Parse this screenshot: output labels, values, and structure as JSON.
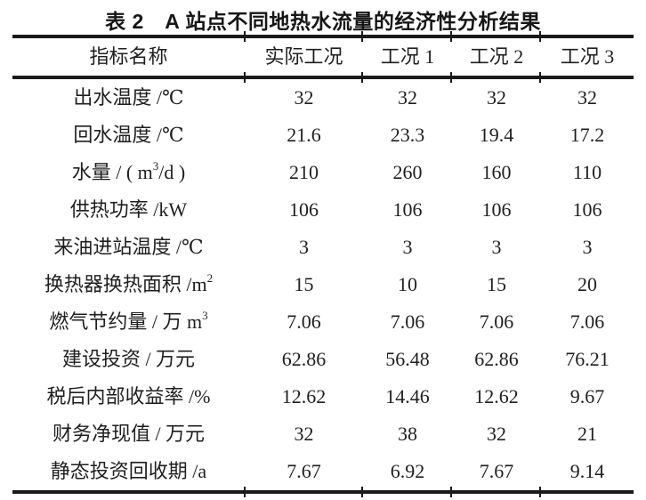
{
  "page": {
    "background": "#ffffff",
    "text_color": "#1f1f1f",
    "rule_color": "#1a1a1a"
  },
  "table": {
    "title": "表 2　A 站点不同地热水流量的经济性分析结果",
    "columns": [
      "指标名称",
      "实际工况",
      "工况 1",
      "工况 2",
      "工况 3"
    ],
    "rows": [
      {
        "label_pre": "出水温度 /℃",
        "label_sup": "",
        "label_post": "",
        "values": [
          "32",
          "32",
          "32",
          "32"
        ]
      },
      {
        "label_pre": "回水温度 /℃",
        "label_sup": "",
        "label_post": "",
        "values": [
          "21.6",
          "23.3",
          "19.4",
          "17.2"
        ]
      },
      {
        "label_pre": "水量 / ( m",
        "label_sup": "3",
        "label_post": "/d )",
        "values": [
          "210",
          "260",
          "160",
          "110"
        ]
      },
      {
        "label_pre": "供热功率 /kW",
        "label_sup": "",
        "label_post": "",
        "values": [
          "106",
          "106",
          "106",
          "106"
        ]
      },
      {
        "label_pre": "来油进站温度 /℃",
        "label_sup": "",
        "label_post": "",
        "values": [
          "3",
          "3",
          "3",
          "3"
        ]
      },
      {
        "label_pre": "换热器换热面积 /m",
        "label_sup": "2",
        "label_post": "",
        "values": [
          "15",
          "10",
          "15",
          "20"
        ]
      },
      {
        "label_pre": "燃气节约量 / 万 m",
        "label_sup": "3",
        "label_post": "",
        "values": [
          "7.06",
          "7.06",
          "7.06",
          "7.06"
        ]
      },
      {
        "label_pre": "建设投资 / 万元",
        "label_sup": "",
        "label_post": "",
        "values": [
          "62.86",
          "56.48",
          "62.86",
          "76.21"
        ]
      },
      {
        "label_pre": "税后内部收益率 /%",
        "label_sup": "",
        "label_post": "",
        "values": [
          "12.62",
          "14.46",
          "12.62",
          "9.67"
        ]
      },
      {
        "label_pre": "财务净现值 / 万元",
        "label_sup": "",
        "label_post": "",
        "values": [
          "32",
          "38",
          "32",
          "21"
        ]
      },
      {
        "label_pre": "静态投资回收期 /a",
        "label_sup": "",
        "label_post": "",
        "values": [
          "7.67",
          "6.92",
          "7.67",
          "9.14"
        ]
      }
    ]
  }
}
